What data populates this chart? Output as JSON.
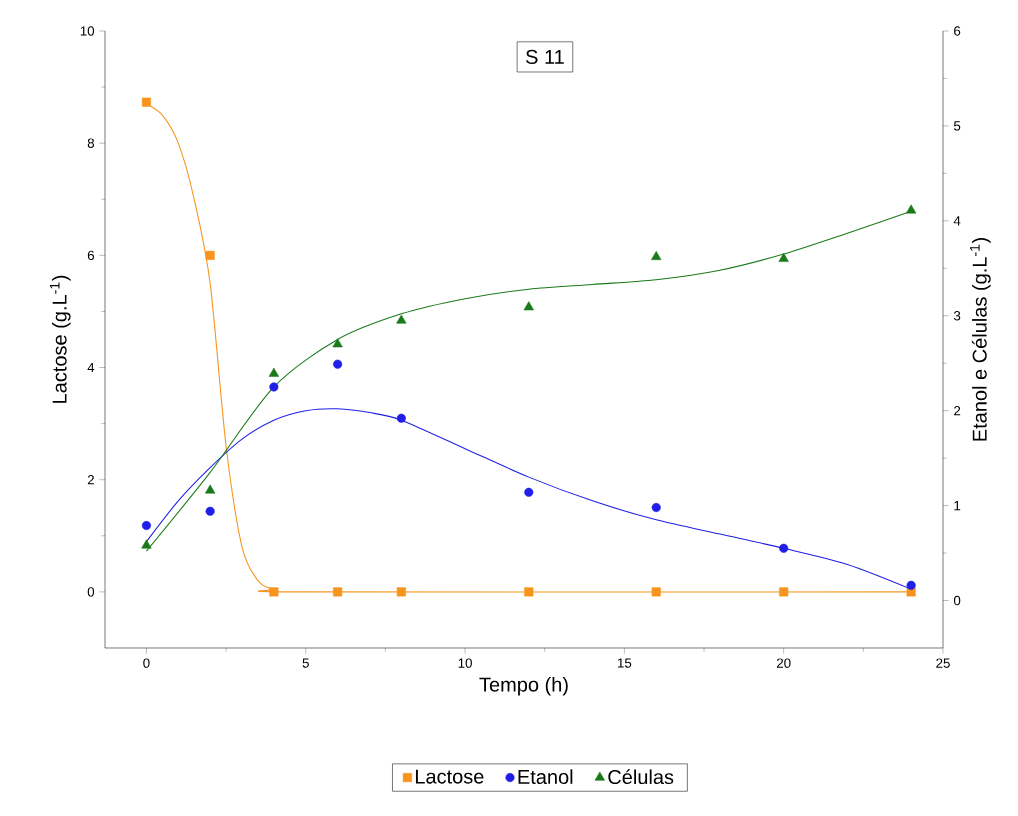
{
  "chart_data": {
    "type": "scatter",
    "annotations": [
      "S 11"
    ],
    "xlabel": "Tempo (h)",
    "ylabel": "Lactose (g.L$^{-1}$)",
    "y2label": "Etanol e Células (g.L$^{-1}$)",
    "xlim": [
      -1.3,
      25
    ],
    "xticks": [
      0,
      5,
      10,
      15,
      20,
      25
    ],
    "ylim": [
      -1,
      10
    ],
    "yticks": [
      0,
      2,
      4,
      6,
      8,
      10
    ],
    "y2lim": [
      -0.5,
      6
    ],
    "y2ticks": [
      0,
      1,
      2,
      3,
      4,
      5,
      6
    ],
    "legend": "bottom",
    "series": [
      {
        "name": "Lactose",
        "marker": "square",
        "color": "#f7941d",
        "x": [
          0,
          2,
          4,
          6,
          8,
          12,
          16,
          20,
          24
        ],
        "values": [
          8.73,
          6.0,
          0,
          0,
          0,
          0,
          0,
          0,
          0
        ]
      },
      {
        "name": "Etanol",
        "marker": "circle",
        "axis": "y2",
        "color": "#1f1fe8",
        "x": [
          0,
          2,
          4,
          6,
          8,
          12,
          16,
          20,
          24
        ],
        "values": [
          0.79,
          0.94,
          2.25,
          2.49,
          1.92,
          1.14,
          0.98,
          0.55,
          0.16
        ]
      },
      {
        "name": "Células",
        "marker": "triangle",
        "axis": "y2",
        "color": "#1a7a1a",
        "x": [
          0,
          2,
          4,
          6,
          8,
          12,
          16,
          20,
          24
        ],
        "values": [
          0.58,
          1.16,
          2.39,
          2.7,
          2.95,
          3.09,
          3.62,
          3.6,
          4.11
        ]
      },
      {
        "type": "line",
        "marker": "none",
        "color": "#f7941d",
        "x": [
          0,
          0.5,
          1,
          1.5,
          2,
          2.5,
          3,
          3.5,
          4,
          5,
          24
        ],
        "values": [
          8.7,
          8.5,
          8.0,
          7.0,
          5.5,
          2.6,
          0.8,
          0.2,
          0.05,
          0,
          0
        ]
      },
      {
        "type": "line",
        "marker": "none",
        "axis": "y2",
        "color": "#1f1fe8",
        "x": [
          0,
          1,
          2,
          3,
          4,
          5,
          6,
          7,
          8,
          10,
          12,
          14,
          16,
          18,
          20,
          22,
          24
        ],
        "values": [
          0.62,
          1.05,
          1.4,
          1.7,
          1.9,
          2.0,
          2.02,
          1.98,
          1.9,
          1.6,
          1.3,
          1.05,
          0.85,
          0.7,
          0.55,
          0.38,
          0.12
        ]
      },
      {
        "type": "line",
        "marker": "none",
        "axis": "y2",
        "color": "#1a7a1a",
        "x": [
          0,
          2,
          4,
          6,
          8,
          10,
          12,
          14,
          16,
          18,
          20,
          22,
          24
        ],
        "values": [
          0.52,
          1.35,
          2.25,
          2.75,
          3.02,
          3.18,
          3.28,
          3.33,
          3.38,
          3.48,
          3.65,
          3.87,
          4.1
        ]
      }
    ]
  }
}
